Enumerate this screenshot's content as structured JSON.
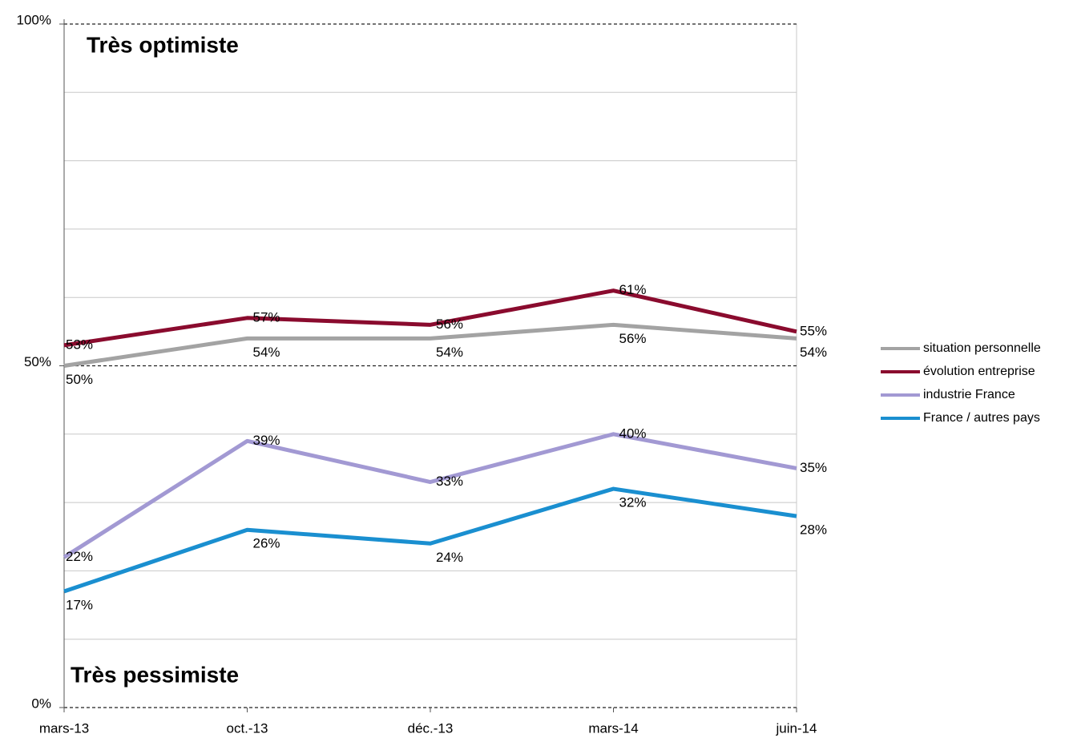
{
  "chart_data": {
    "type": "line",
    "categories": [
      "mars-13",
      "oct.-13",
      "déc.-13",
      "mars-14",
      "juin-14"
    ],
    "series": [
      {
        "name": "situation personnelle",
        "color": "#a3a3a3",
        "values": [
          50,
          54,
          54,
          56,
          54
        ],
        "value_labels": [
          "50%",
          "54%",
          "54%",
          "56%",
          "54%"
        ]
      },
      {
        "name": "évolution entreprise",
        "color": "#8a0b2e",
        "values": [
          53,
          57,
          56,
          61,
          55
        ],
        "value_labels": [
          "53%",
          "57%",
          "56%",
          "61%",
          "55%"
        ]
      },
      {
        "name": "industrie France",
        "color": "#a299d3",
        "values": [
          22,
          39,
          33,
          40,
          35
        ],
        "value_labels": [
          "22%",
          "39%",
          "33%",
          "40%",
          "35%"
        ]
      },
      {
        "name": "France / autres pays",
        "color": "#1a8fd0",
        "values": [
          17,
          26,
          24,
          32,
          28
        ],
        "value_labels": [
          "17%",
          "26%",
          "24%",
          "32%",
          "28%"
        ]
      }
    ],
    "ylim": [
      0,
      100
    ],
    "yticks": [
      {
        "value": 0,
        "label": "0%"
      },
      {
        "value": 50,
        "label": "50%"
      },
      {
        "value": 100,
        "label": "100%"
      }
    ],
    "minor_gridlines": [
      10,
      20,
      30,
      40,
      60,
      70,
      80,
      90
    ],
    "annotations": [
      {
        "text": "Très optimiste",
        "color": "#1faa1f"
      },
      {
        "text": "Très pessimiste",
        "color": "#8a0b2e"
      }
    ],
    "legend": "right"
  }
}
